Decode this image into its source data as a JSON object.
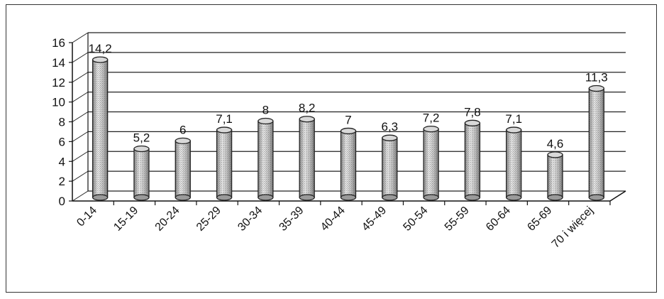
{
  "chart_data": {
    "type": "bar",
    "categories": [
      "0-14",
      "15-19",
      "20-24",
      "25-29",
      "30-34",
      "35-39",
      "40-44",
      "45-49",
      "50-54",
      "55-59",
      "60-64",
      "65-69",
      "70 i więcej"
    ],
    "values": [
      14.2,
      5.2,
      6,
      7.1,
      8,
      8.2,
      7,
      6.3,
      7.2,
      7.8,
      7.1,
      4.6,
      11.3
    ],
    "data_labels": [
      "14,2",
      "5,2",
      "6",
      "7,1",
      "8",
      "8,2",
      "7",
      "6,3",
      "7,2",
      "7,8",
      "7,1",
      "4,6",
      "11,3"
    ],
    "y_ticks": [
      "0",
      "2",
      "4",
      "6",
      "8",
      "10",
      "12",
      "14",
      "16"
    ],
    "ylim": [
      0,
      16
    ],
    "grid": true,
    "legend": "none",
    "colors": {
      "bar": "#c8c8c8",
      "bar_edge": "#222222",
      "grid": "#222222"
    }
  }
}
